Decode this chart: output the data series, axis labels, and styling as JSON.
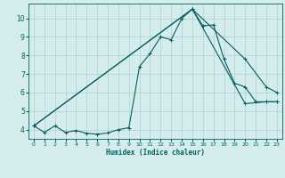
{
  "xlabel": "Humidex (Indice chaleur)",
  "bg_color": "#d4ecec",
  "grid_color": "#b8d4d4",
  "line_color": "#006060",
  "xlim": [
    -0.5,
    23.5
  ],
  "ylim": [
    3.5,
    10.8
  ],
  "xticks": [
    0,
    1,
    2,
    3,
    4,
    5,
    6,
    7,
    8,
    9,
    10,
    11,
    12,
    13,
    14,
    15,
    16,
    17,
    18,
    19,
    20,
    21,
    22,
    23
  ],
  "yticks": [
    4,
    5,
    6,
    7,
    8,
    9,
    10
  ],
  "line1_x": [
    0,
    1,
    2,
    3,
    4,
    5,
    6,
    7,
    8,
    9,
    10,
    11,
    12,
    13,
    14,
    15,
    16,
    17,
    18,
    19,
    20,
    21,
    22,
    23
  ],
  "line1_y": [
    4.2,
    3.85,
    4.2,
    3.85,
    3.95,
    3.8,
    3.75,
    3.82,
    4.0,
    4.1,
    7.4,
    8.1,
    9.0,
    8.85,
    10.0,
    10.5,
    9.6,
    9.65,
    7.8,
    6.5,
    6.3,
    5.5,
    5.5,
    5.5
  ],
  "line2_x": [
    0,
    15,
    20,
    22,
    23
  ],
  "line2_y": [
    4.2,
    10.5,
    7.8,
    6.3,
    6.0
  ],
  "line3_x": [
    0,
    15,
    20,
    22,
    23
  ],
  "line3_y": [
    4.2,
    10.5,
    5.4,
    5.5,
    5.5
  ]
}
